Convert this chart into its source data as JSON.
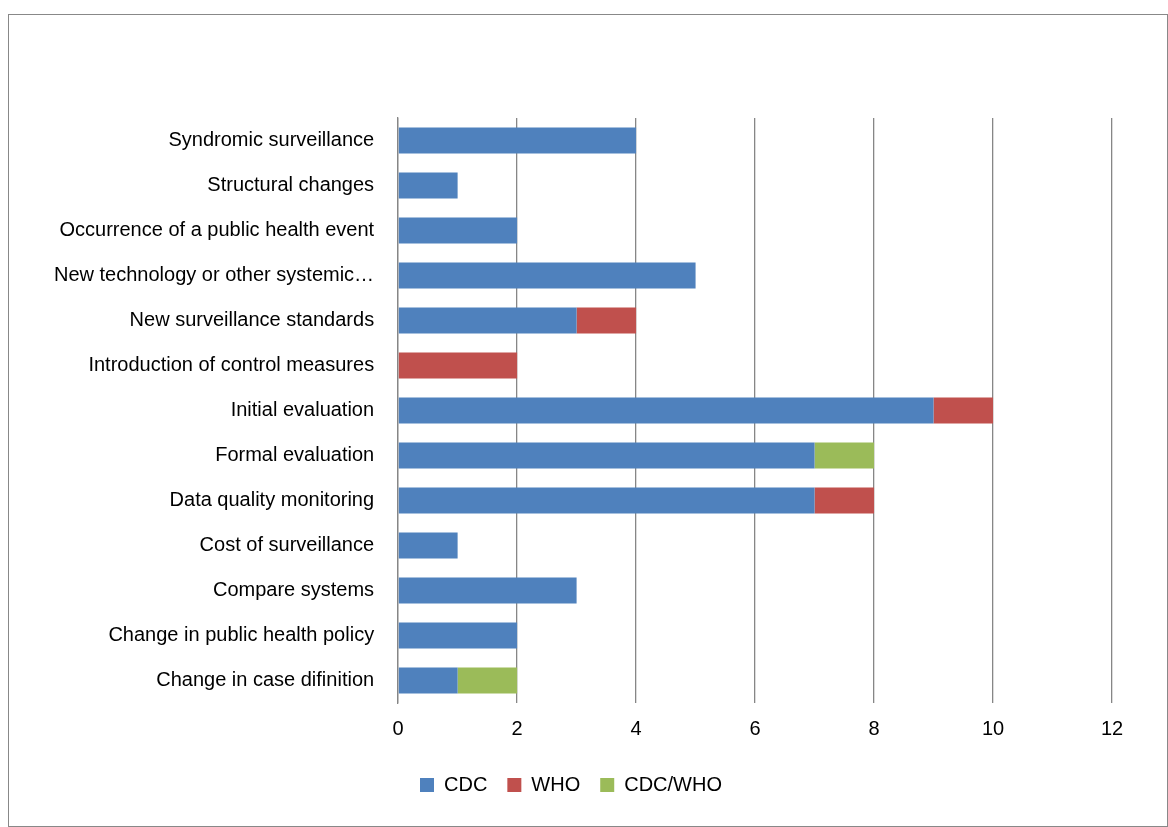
{
  "chart_data": {
    "type": "bar",
    "orientation": "horizontal",
    "stacked": true,
    "categories": [
      "Syndromic surveillance",
      "Structural changes",
      "Occurrence of a public health event",
      "New technology or other systemic…",
      "New surveillance standards",
      "Introduction of control measures",
      "Initial evaluation",
      "Formal evaluation",
      "Data quality monitoring",
      "Cost of surveillance",
      "Compare systems",
      "Change in public health policy",
      "Change in case difinition"
    ],
    "series": [
      {
        "name": "CDC",
        "color": "#4f81bd",
        "values": [
          4,
          1,
          2,
          5,
          3,
          null,
          9,
          7,
          7,
          1,
          3,
          2,
          1
        ]
      },
      {
        "name": "WHO",
        "color": "#c0504d",
        "values": [
          null,
          null,
          null,
          null,
          1,
          2,
          1,
          null,
          1,
          null,
          null,
          null,
          null
        ]
      },
      {
        "name": "CDC/WHO",
        "color": "#9bbb59",
        "values": [
          null,
          null,
          null,
          null,
          null,
          null,
          null,
          1,
          null,
          null,
          null,
          null,
          1
        ]
      }
    ],
    "xlim": [
      0,
      12
    ],
    "xticks": [
      0,
      2,
      4,
      6,
      8,
      10,
      12
    ],
    "grid": "x",
    "legend": "bottom"
  }
}
